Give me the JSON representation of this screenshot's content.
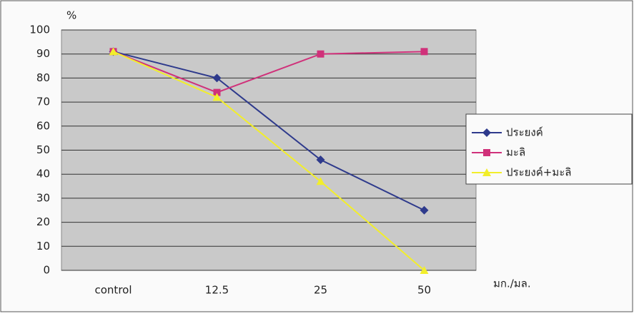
{
  "chart_data": {
    "type": "line",
    "y_label": "%",
    "x_label": "มก./มล.",
    "categories": [
      "control",
      "12.5",
      "25",
      "50"
    ],
    "series": [
      {
        "name": "ประยงค์",
        "color": "#2e3a8c",
        "marker": "diamond",
        "values": [
          91,
          80,
          46,
          25
        ]
      },
      {
        "name": "มะลิ",
        "color": "#d0317a",
        "marker": "square",
        "values": [
          91,
          74,
          90,
          91
        ]
      },
      {
        "name": "ประยงค์+มะลิ",
        "color": "#f2ee2a",
        "marker": "triangle",
        "values": [
          91,
          72,
          37,
          0
        ]
      }
    ],
    "ylim": [
      0,
      100
    ],
    "yticks": [
      0,
      10,
      20,
      30,
      40,
      50,
      60,
      70,
      80,
      90,
      100
    ],
    "grid": true,
    "legend": "right"
  }
}
